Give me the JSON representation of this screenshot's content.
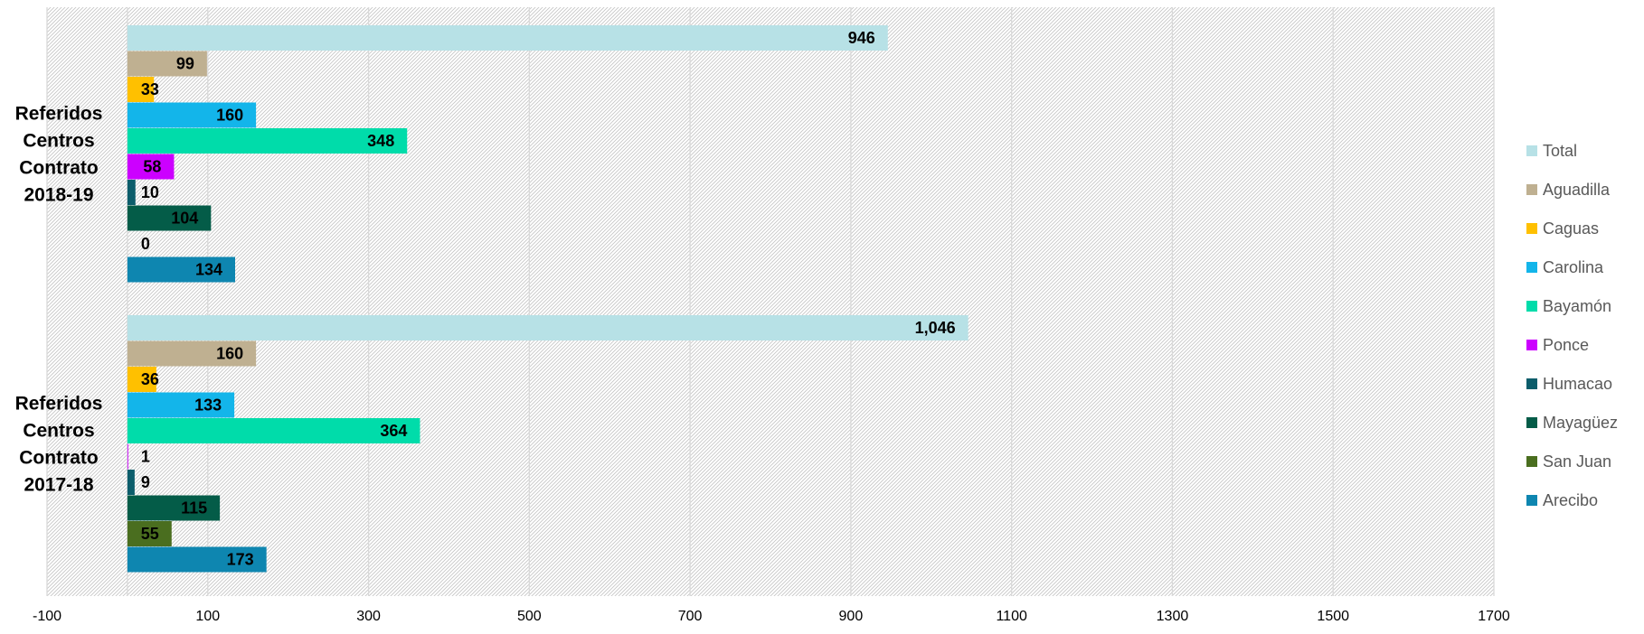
{
  "chart_data": {
    "type": "bar",
    "orientation": "horizontal",
    "title": "",
    "xlabel": "",
    "ylabel": "",
    "xlim": [
      -100,
      1700
    ],
    "x_ticks": [
      -100,
      100,
      300,
      500,
      700,
      900,
      1100,
      1300,
      1500,
      1700
    ],
    "x_tick_labels": [
      "-100",
      "100",
      "300",
      "500",
      "700",
      "900",
      "1100",
      "1300",
      "1500",
      "1700"
    ],
    "grid": true,
    "legend_position": "right",
    "categories": [
      {
        "lines": [
          "Referidos",
          "Centros",
          "Contrato",
          "2018-19"
        ]
      },
      {
        "lines": [
          "Referidos",
          "Centros",
          "Contrato",
          "2017-18"
        ]
      }
    ],
    "series": [
      {
        "name": "Total",
        "color": "#b7e1e6",
        "values": [
          946,
          1046
        ],
        "labels": [
          "946",
          "1,046"
        ]
      },
      {
        "name": "Aguadilla",
        "color": "#bfb091",
        "values": [
          99,
          160
        ],
        "labels": [
          "99",
          "160"
        ]
      },
      {
        "name": "Caguas",
        "color": "#ffc000",
        "values": [
          33,
          36
        ],
        "labels": [
          "33",
          "36"
        ]
      },
      {
        "name": "Carolina",
        "color": "#13b5ea",
        "values": [
          160,
          133
        ],
        "labels": [
          "160",
          "133"
        ]
      },
      {
        "name": "Bayamón",
        "color": "#00dcaa",
        "values": [
          348,
          364
        ],
        "labels": [
          "348",
          "364"
        ]
      },
      {
        "name": "Ponce",
        "color": "#cc00ff",
        "values": [
          58,
          1
        ],
        "labels": [
          "58",
          "1"
        ]
      },
      {
        "name": "Humacao",
        "color": "#0c5d6b",
        "values": [
          10,
          9
        ],
        "labels": [
          "10",
          "9"
        ]
      },
      {
        "name": "Mayagüez",
        "color": "#045c48",
        "values": [
          104,
          115
        ],
        "labels": [
          "104",
          "115"
        ]
      },
      {
        "name": "San Juan",
        "color": "#4a6e1f",
        "values": [
          0,
          55
        ],
        "labels": [
          "0",
          "55"
        ]
      },
      {
        "name": "Arecibo",
        "color": "#0e86b0",
        "values": [
          134,
          173
        ],
        "labels": [
          "134",
          "173"
        ]
      }
    ]
  }
}
